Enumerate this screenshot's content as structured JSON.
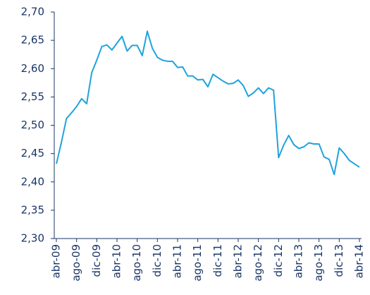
{
  "chart_data": {
    "type": "line",
    "categories": [
      "abr-09",
      null,
      null,
      null,
      "ago-09",
      null,
      null,
      null,
      "dic-09",
      null,
      null,
      null,
      "abr-10",
      null,
      null,
      null,
      "ago-10",
      null,
      null,
      null,
      "dic-10",
      null,
      null,
      null,
      "abr-11",
      null,
      null,
      null,
      "ago-11",
      null,
      null,
      null,
      "dic-11",
      null,
      null,
      null,
      "abr-12",
      null,
      null,
      null,
      "ago-12",
      null,
      null,
      null,
      "dic-12",
      null,
      null,
      null,
      "abr-13",
      null,
      null,
      null,
      "ago-13",
      null,
      null,
      null,
      "dic-13",
      null,
      null,
      null,
      "abr-14"
    ],
    "values": [
      2.432,
      2.47,
      2.512,
      2.522,
      2.533,
      2.547,
      2.538,
      2.593,
      2.615,
      2.639,
      2.642,
      2.633,
      2.645,
      2.657,
      2.631,
      2.641,
      2.641,
      2.623,
      2.666,
      2.636,
      2.62,
      2.615,
      2.613,
      2.613,
      2.602,
      2.603,
      2.587,
      2.587,
      2.58,
      2.581,
      2.568,
      2.59,
      2.584,
      2.578,
      2.573,
      2.574,
      2.58,
      2.57,
      2.551,
      2.557,
      2.566,
      2.556,
      2.566,
      2.562,
      2.443,
      2.465,
      2.482,
      2.466,
      2.459,
      2.462,
      2.469,
      2.467,
      2.467,
      2.444,
      2.44,
      2.413,
      2.46,
      2.45,
      2.438,
      2.432,
      2.426
    ],
    "color": "#1fa3dc",
    "ylim": [
      2.3,
      2.7
    ],
    "yticks": [
      {
        "value": 2.3,
        "label": "2,30"
      },
      {
        "value": 2.35,
        "label": "2,35"
      },
      {
        "value": 2.4,
        "label": "2,40"
      },
      {
        "value": 2.45,
        "label": "2,45"
      },
      {
        "value": 2.5,
        "label": "2,50"
      },
      {
        "value": 2.55,
        "label": "2,55"
      },
      {
        "value": 2.6,
        "label": "2,60"
      },
      {
        "value": 2.65,
        "label": "2,65"
      },
      {
        "value": 2.7,
        "label": "2,70"
      }
    ],
    "grid": false
  }
}
